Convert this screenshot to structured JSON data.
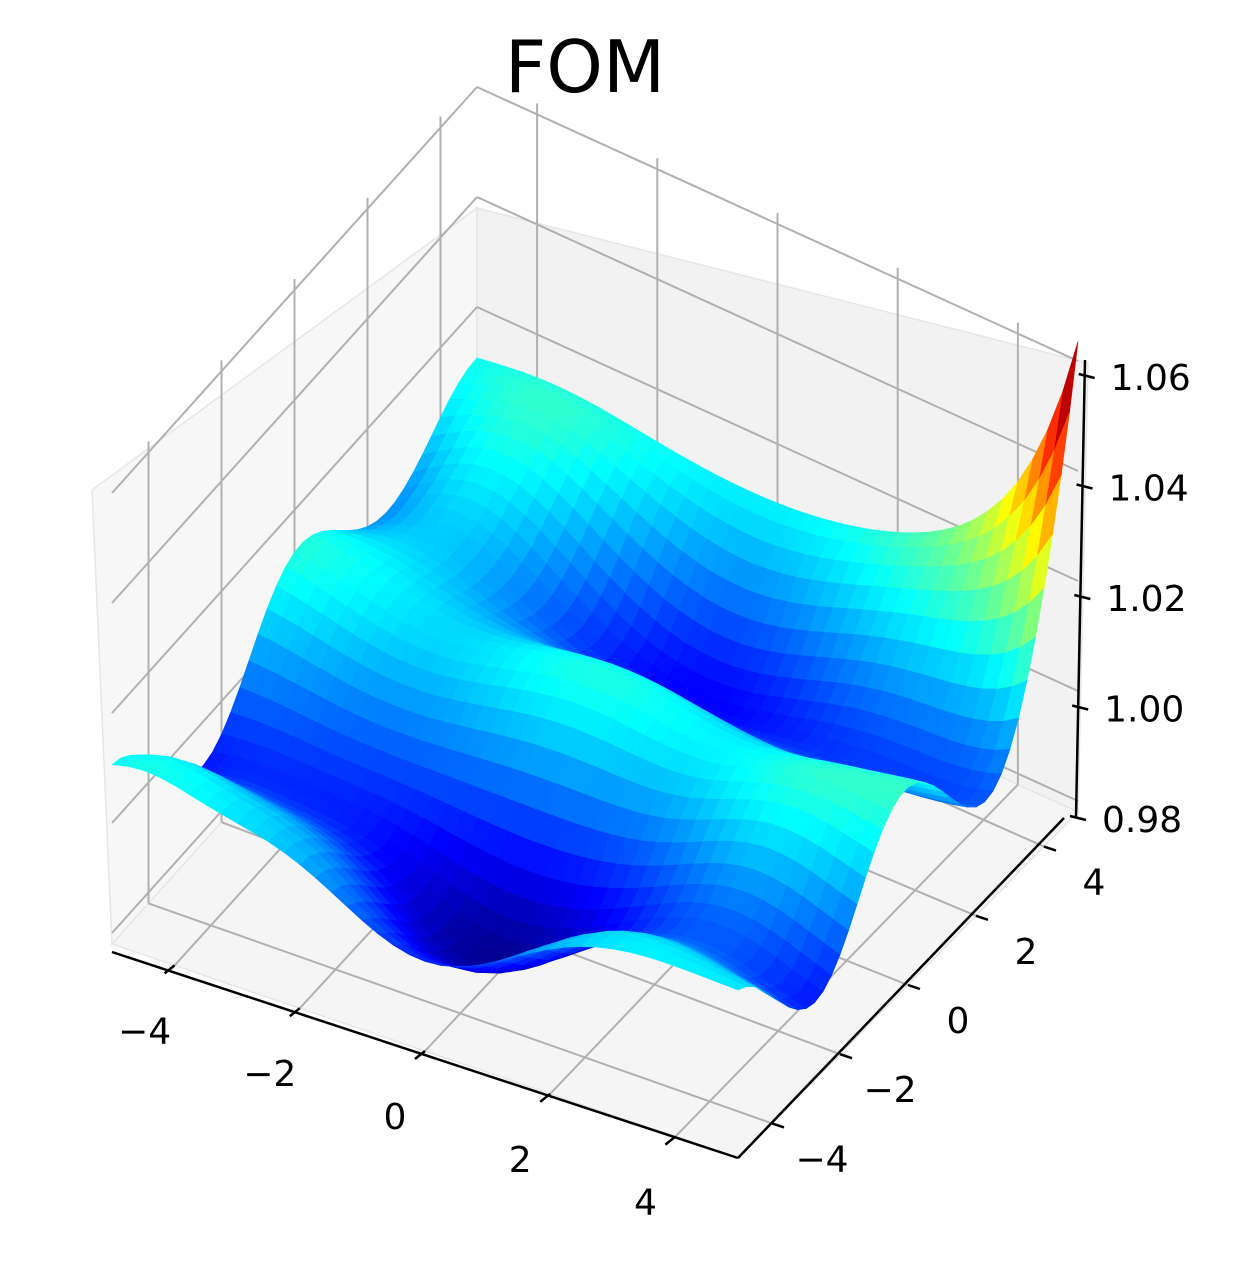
{
  "chart_data": {
    "type": "surface3d",
    "title": "FOM",
    "colormap": "jet",
    "x_ticks": [
      "−4",
      "−2",
      "0",
      "2",
      "4"
    ],
    "x_tick_values": [
      -4,
      -2,
      0,
      2,
      4
    ],
    "y_ticks": [
      "−4",
      "−2",
      "0",
      "2",
      "4"
    ],
    "y_tick_values": [
      -4,
      -2,
      0,
      2,
      4
    ],
    "z_ticks": [
      "0.98",
      "1.00",
      "1.02",
      "1.04",
      "1.06"
    ],
    "z_tick_values": [
      0.98,
      1.0,
      1.02,
      1.04,
      1.06
    ],
    "xlim": [
      -5,
      5
    ],
    "ylim": [
      -5,
      5
    ],
    "zlim": [
      0.978,
      1.062
    ],
    "grid": true,
    "surface_grid": {
      "x_range": [
        -5,
        5
      ],
      "y_range": [
        -5,
        5
      ],
      "steps": 40
    },
    "z_min": 0.981,
    "z_max": 1.058
  }
}
